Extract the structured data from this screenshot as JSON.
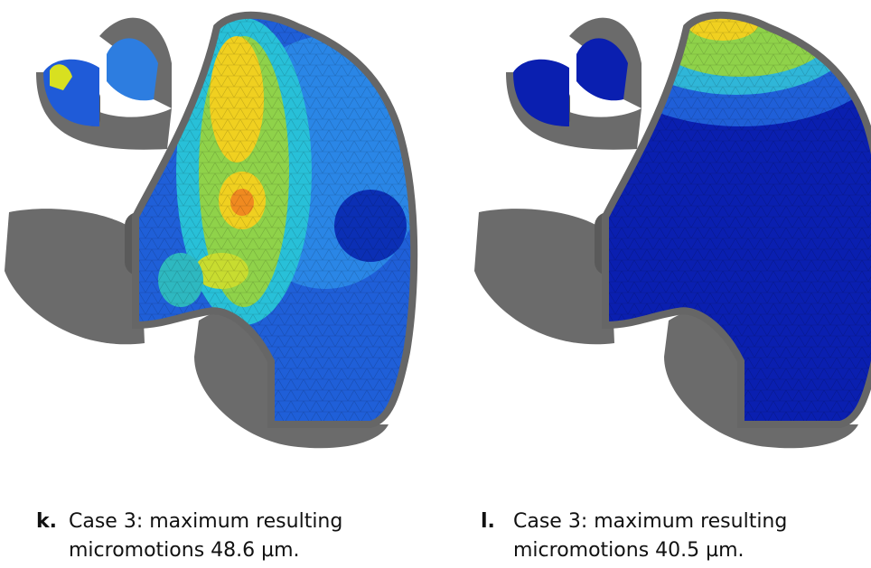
{
  "panels": [
    {
      "label": "k.",
      "caption": "Case 3: maximum resulting micromotions 48.6 µm."
    },
    {
      "label": "l.",
      "caption": "Case 3: maximum resulting micromotions 40.5 µm."
    }
  ]
}
